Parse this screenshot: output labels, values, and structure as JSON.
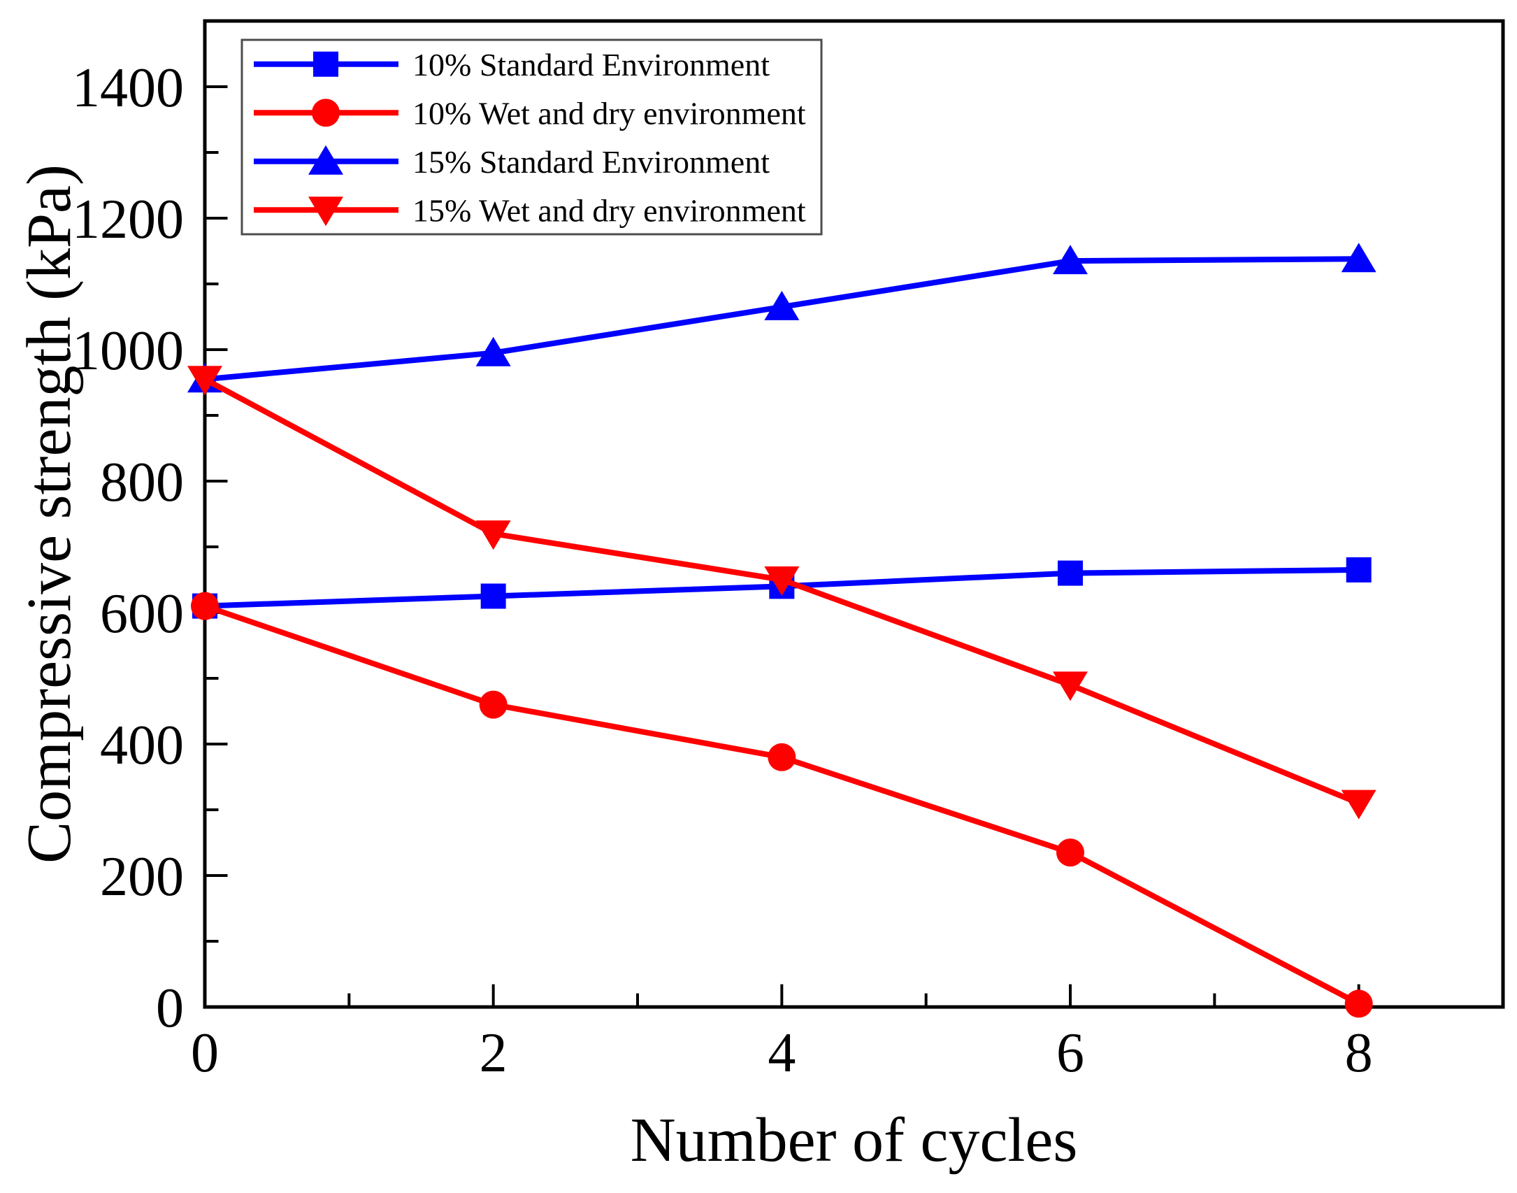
{
  "figure": {
    "background": "#ffffff",
    "axis_color": "#000000"
  },
  "chart_data": {
    "type": "line",
    "x": [
      0,
      2,
      4,
      6,
      8
    ],
    "series": [
      {
        "id": "pct10-standard",
        "name": "10% Standard Environment",
        "color": "#0000fe",
        "marker": "square",
        "values": [
          610,
          625,
          640,
          660,
          665
        ]
      },
      {
        "id": "pct10-wetdry",
        "name": "10% Wet and dry environment",
        "color": "#fe0000",
        "marker": "circle",
        "values": [
          610,
          460,
          380,
          235,
          5
        ]
      },
      {
        "id": "pct15-standard",
        "name": "15% Standard Environment",
        "color": "#0000fe",
        "marker": "triangle-up",
        "values": [
          955,
          995,
          1065,
          1135,
          1138
        ]
      },
      {
        "id": "pct15-wetdry",
        "name": "15% Wet and dry environment",
        "color": "#fe0000",
        "marker": "triangle-down",
        "values": [
          955,
          720,
          650,
          490,
          310
        ]
      }
    ],
    "title": "",
    "xlabel": "Number of cycles",
    "ylabel": "Compressive strength (kPa)",
    "xlim": [
      0,
      9
    ],
    "ylim": [
      0,
      1500
    ],
    "xticks": [
      0,
      2,
      4,
      6,
      8
    ],
    "yticks": [
      0,
      200,
      400,
      600,
      800,
      1000,
      1200,
      1400
    ],
    "x_minor_ticks": [
      1,
      3,
      5,
      7
    ],
    "y_minor_ticks": [
      100,
      300,
      500,
      700,
      900,
      1100,
      1300
    ],
    "grid": "off",
    "legend_position": "top-left",
    "legend_border_color": "#4d4d4d"
  }
}
